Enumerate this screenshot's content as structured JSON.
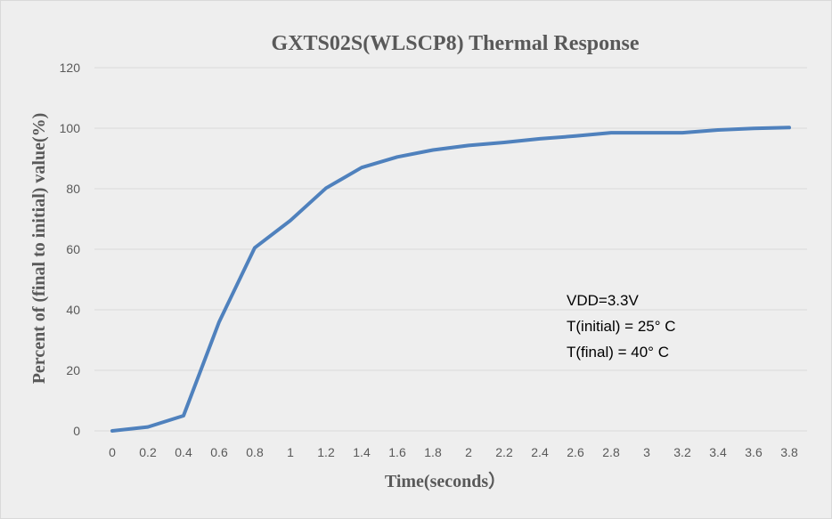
{
  "chart_data": {
    "type": "line",
    "title": "GXTS02S(WLSCP8) Thermal Response",
    "xlabel": "Time(seconds）",
    "ylabel": "Percent of (final to initial) value(%)",
    "ylim": [
      0,
      120
    ],
    "yticks": [
      "0",
      "20",
      "40",
      "60",
      "80",
      "100",
      "120"
    ],
    "categories": [
      "0",
      "0.2",
      "0.4",
      "0.6",
      "0.8",
      "1",
      "1.2",
      "1.4",
      "1.6",
      "1.8",
      "2",
      "2.2",
      "2.4",
      "2.6",
      "2.8",
      "3",
      "3.2",
      "3.4",
      "3.6",
      "3.8"
    ],
    "series": [
      {
        "values": [
          0,
          1.3,
          5,
          36,
          60.5,
          69.5,
          80.2,
          87,
          90.5,
          92.8,
          94.3,
          95.3,
          96.5,
          97.4,
          98.5,
          98.5,
          98.5,
          99.4,
          99.9,
          100.2
        ],
        "color": "#4f81bd"
      }
    ],
    "grid": "horizontal",
    "legend": "none",
    "annotations": [
      "VDD=3.3V",
      "T(initial) = 25°  C",
      "T(final) = 40°  C"
    ]
  }
}
